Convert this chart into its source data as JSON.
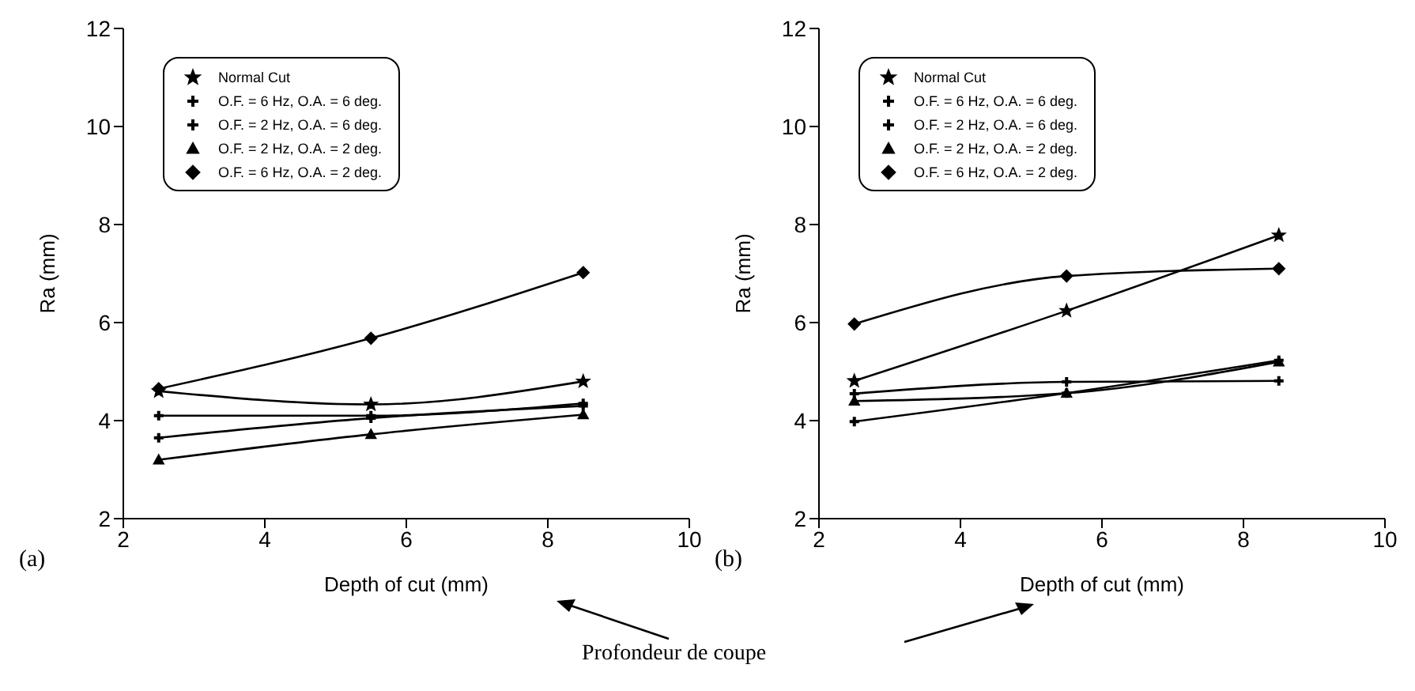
{
  "chart_data": [
    {
      "type": "line",
      "xlabel": "Depth of cut (mm)",
      "ylabel": "Ra (mm)",
      "x": [
        2.5,
        5.5,
        8.5
      ],
      "xlim": [
        2,
        10
      ],
      "xticks": [
        2,
        4,
        6,
        8,
        10
      ],
      "ylim": [
        2,
        12
      ],
      "yticks": [
        2,
        4,
        6,
        8,
        10,
        12
      ],
      "legend": "top left",
      "line_style": "solid",
      "annotations": [
        "(a)",
        "Profondeur de coupe"
      ],
      "series": [
        {
          "name": "Normal Cut",
          "color": "#000000",
          "marker": "star",
          "values": [
            4.6,
            4.33,
            4.8
          ]
        },
        {
          "name": "O.F. = 6 Hz, O.A. = 6 deg.",
          "color": "#000000",
          "marker": "cross",
          "values": [
            4.1,
            4.1,
            4.35
          ]
        },
        {
          "name": "O.F. = 2 Hz, O.A. = 6 deg.",
          "color": "#000000",
          "marker": "cross",
          "values": [
            3.65,
            4.05,
            4.3
          ]
        },
        {
          "name": "O.F. = 2 Hz, O.A. = 2 deg.",
          "color": "#000000",
          "marker": "triangle",
          "values": [
            3.2,
            3.72,
            4.12
          ]
        },
        {
          "name": "O.F. = 6 Hz, O.A. = 2 deg.",
          "color": "#000000",
          "marker": "diamond",
          "values": [
            4.65,
            5.68,
            7.02
          ]
        }
      ]
    },
    {
      "type": "line",
      "xlabel": "Depth of cut (mm)",
      "ylabel": "Ra (mm)",
      "x": [
        2.5,
        5.5,
        8.5
      ],
      "xlim": [
        2,
        10
      ],
      "xticks": [
        2,
        4,
        6,
        8,
        10
      ],
      "ylim": [
        2,
        12
      ],
      "yticks": [
        2,
        4,
        6,
        8,
        10,
        12
      ],
      "legend": "top left",
      "line_style": "solid",
      "annotations": [
        "(b)"
      ],
      "series": [
        {
          "name": "Normal Cut",
          "color": "#000000",
          "marker": "star",
          "values": [
            4.81,
            6.24,
            7.78
          ]
        },
        {
          "name": "O.F. = 6 Hz, O.A. = 6 deg.",
          "color": "#000000",
          "marker": "cross",
          "values": [
            4.55,
            4.79,
            4.81
          ]
        },
        {
          "name": "O.F. = 2 Hz, O.A. = 6 deg.",
          "color": "#000000",
          "marker": "cross",
          "values": [
            3.98,
            4.56,
            5.23
          ]
        },
        {
          "name": "O.F. = 2 Hz, O.A. = 2 deg.",
          "color": "#000000",
          "marker": "triangle",
          "values": [
            4.4,
            4.56,
            5.2
          ]
        },
        {
          "name": "O.F. = 6 Hz, O.A. = 2 deg.",
          "color": "#000000",
          "marker": "diamond",
          "values": [
            5.97,
            6.95,
            7.1
          ]
        }
      ]
    }
  ]
}
